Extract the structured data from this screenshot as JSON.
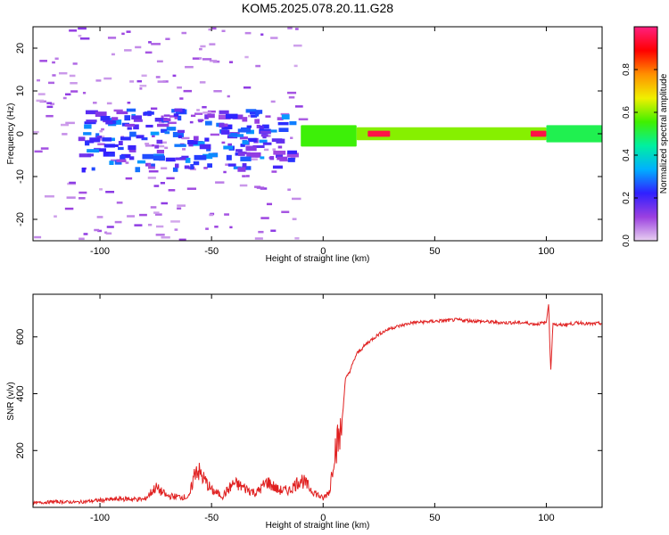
{
  "figure": {
    "title": "KOM5.2025.078.20.11.G28"
  },
  "chart_data": [
    {
      "type": "heatmap",
      "xlabel": "Height of straight line (km)",
      "ylabel": "Frequency (Hz)",
      "xlim": [
        -130,
        125
      ],
      "ylim": [
        -25,
        25
      ],
      "x_ticks": [
        -100,
        -50,
        0,
        50,
        100
      ],
      "y_ticks": [
        -20,
        -10,
        0,
        10,
        20
      ],
      "colorbar": {
        "label": "Normalized spectral amplitude",
        "range": [
          0,
          1
        ],
        "ticks": [
          0.0,
          0.2,
          0.4,
          0.6,
          0.8
        ],
        "colormap": [
          "#e8d0f0",
          "#9b40e0",
          "#3020ff",
          "#00b0ff",
          "#00f0a0",
          "#40f000",
          "#f0f000",
          "#ff9000",
          "#ff0000",
          "#ff2080"
        ]
      },
      "features": [
        {
          "x_range": [
            -130,
            -10
          ],
          "freq_range": [
            -25,
            25
          ],
          "amplitude": 0.1
        },
        {
          "x_range": [
            -110,
            -15
          ],
          "freq_range": [
            -8,
            6
          ],
          "amplitude": 0.3
        },
        {
          "x_range": [
            -10,
            15
          ],
          "freq_range": [
            -3,
            2
          ],
          "amplitude": 0.55
        },
        {
          "x_range": [
            15,
            100
          ],
          "freq_range": [
            -1.5,
            1.5
          ],
          "amplitude": 0.6
        },
        {
          "x_range": [
            20,
            30
          ],
          "freq_range": [
            -0.7,
            0.7
          ],
          "amplitude": 0.95
        },
        {
          "x_range": [
            93,
            100
          ],
          "freq_range": [
            -0.7,
            0.7
          ],
          "amplitude": 0.95
        },
        {
          "x_range": [
            100,
            125
          ],
          "freq_range": [
            -2,
            2
          ],
          "amplitude": 0.5
        }
      ]
    },
    {
      "type": "line",
      "xlabel": "Height of straight line (km)",
      "ylabel": "SNR (v/v)",
      "xlim": [
        -130,
        125
      ],
      "ylim": [
        0,
        750
      ],
      "x_ticks": [
        -100,
        -50,
        0,
        50,
        100
      ],
      "y_ticks": [
        200,
        400,
        600
      ],
      "line_color": "#e02020",
      "series": [
        {
          "x": [
            -130,
            -120,
            -110,
            -100,
            -90,
            -80,
            -75,
            -70,
            -60,
            -57,
            -50,
            -45,
            -40,
            -30,
            -25,
            -20,
            -15,
            -10,
            -5,
            0,
            3,
            5,
            8,
            10,
            12,
            15,
            20,
            25,
            30,
            40,
            50,
            60,
            70,
            80,
            90,
            95,
            100,
            101,
            102,
            103,
            105,
            110,
            115,
            120,
            125
          ],
          "y": [
            15,
            20,
            18,
            25,
            30,
            28,
            70,
            40,
            35,
            140,
            60,
            40,
            85,
            50,
            90,
            60,
            60,
            100,
            60,
            30,
            60,
            200,
            260,
            450,
            480,
            540,
            580,
            610,
            630,
            650,
            655,
            660,
            655,
            650,
            650,
            645,
            650,
            720,
            480,
            650,
            640,
            645,
            650,
            645,
            648
          ]
        }
      ]
    }
  ]
}
